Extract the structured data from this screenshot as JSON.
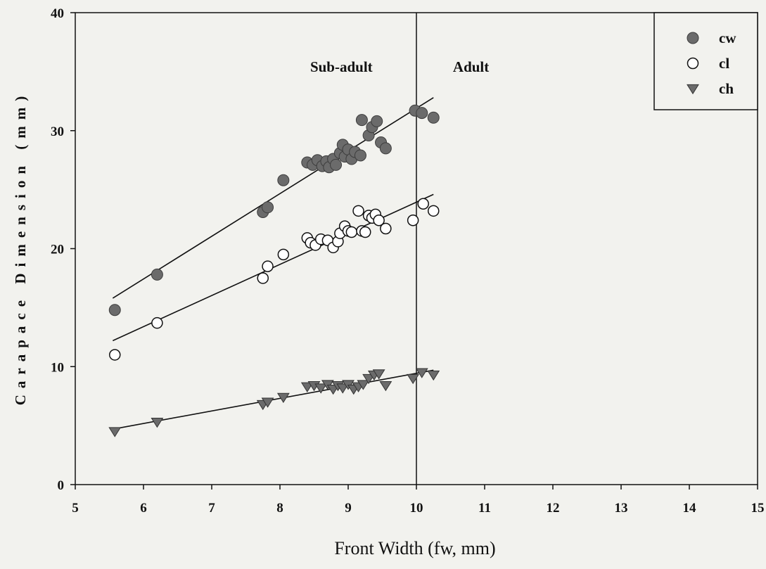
{
  "chart_data": {
    "type": "scatter",
    "title": "",
    "xlabel": "Front Width (fw, mm)",
    "ylabel": "Carapace Dimension (mm)",
    "xlim": [
      5,
      15
    ],
    "ylim": [
      0,
      40
    ],
    "xticks": [
      5,
      6,
      7,
      8,
      9,
      10,
      11,
      12,
      13,
      14,
      15
    ],
    "yticks": [
      0,
      10,
      20,
      30,
      40
    ],
    "grid": false,
    "legend_position": "top-right",
    "divider": {
      "x": 10
    },
    "annotations": [
      {
        "text": "Sub-adult",
        "x": 8.9,
        "y": 35
      },
      {
        "text": "Adult",
        "x": 10.8,
        "y": 35
      }
    ],
    "series": [
      {
        "name": "cw",
        "marker": "circle-filled",
        "color": "#6b6b6b",
        "points": [
          [
            5.58,
            14.8
          ],
          [
            6.2,
            17.8
          ],
          [
            7.75,
            23.1
          ],
          [
            7.82,
            23.5
          ],
          [
            8.05,
            25.8
          ],
          [
            8.4,
            27.3
          ],
          [
            8.48,
            27.1
          ],
          [
            8.55,
            27.5
          ],
          [
            8.62,
            27.0
          ],
          [
            8.68,
            27.4
          ],
          [
            8.72,
            26.9
          ],
          [
            8.78,
            27.6
          ],
          [
            8.82,
            27.1
          ],
          [
            8.88,
            28.1
          ],
          [
            8.92,
            28.8
          ],
          [
            8.95,
            27.8
          ],
          [
            9.0,
            28.4
          ],
          [
            9.05,
            27.6
          ],
          [
            9.1,
            28.2
          ],
          [
            9.18,
            27.9
          ],
          [
            9.2,
            30.9
          ],
          [
            9.3,
            29.6
          ],
          [
            9.35,
            30.3
          ],
          [
            9.42,
            30.8
          ],
          [
            9.48,
            29.0
          ],
          [
            9.55,
            28.5
          ],
          [
            9.98,
            31.7
          ],
          [
            10.08,
            31.5
          ],
          [
            10.25,
            31.1
          ]
        ],
        "fit": [
          [
            5.55,
            15.8
          ],
          [
            10.25,
            32.8
          ]
        ]
      },
      {
        "name": "cl",
        "marker": "circle-open",
        "color": "#ffffff",
        "points": [
          [
            5.58,
            11.0
          ],
          [
            6.2,
            13.7
          ],
          [
            7.75,
            17.5
          ],
          [
            7.82,
            18.5
          ],
          [
            8.05,
            19.5
          ],
          [
            8.4,
            20.9
          ],
          [
            8.45,
            20.5
          ],
          [
            8.52,
            20.3
          ],
          [
            8.6,
            20.8
          ],
          [
            8.7,
            20.7
          ],
          [
            8.78,
            20.1
          ],
          [
            8.85,
            20.6
          ],
          [
            8.88,
            21.3
          ],
          [
            8.95,
            21.9
          ],
          [
            9.0,
            21.5
          ],
          [
            9.05,
            21.4
          ],
          [
            9.15,
            23.2
          ],
          [
            9.2,
            21.5
          ],
          [
            9.25,
            21.4
          ],
          [
            9.3,
            22.8
          ],
          [
            9.35,
            22.6
          ],
          [
            9.4,
            22.9
          ],
          [
            9.45,
            22.4
          ],
          [
            9.55,
            21.7
          ],
          [
            9.95,
            22.4
          ],
          [
            10.1,
            23.8
          ],
          [
            10.25,
            23.2
          ]
        ],
        "fit": [
          [
            5.55,
            12.2
          ],
          [
            10.25,
            24.6
          ]
        ]
      },
      {
        "name": "ch",
        "marker": "triangle-down",
        "color": "#6b6b6b",
        "points": [
          [
            5.58,
            4.5
          ],
          [
            6.2,
            5.3
          ],
          [
            7.75,
            6.8
          ],
          [
            7.82,
            7.0
          ],
          [
            8.05,
            7.4
          ],
          [
            8.4,
            8.3
          ],
          [
            8.5,
            8.4
          ],
          [
            8.6,
            8.2
          ],
          [
            8.7,
            8.5
          ],
          [
            8.78,
            8.1
          ],
          [
            8.85,
            8.4
          ],
          [
            8.92,
            8.2
          ],
          [
            9.0,
            8.5
          ],
          [
            9.08,
            8.1
          ],
          [
            9.15,
            8.3
          ],
          [
            9.22,
            8.5
          ],
          [
            9.3,
            9.0
          ],
          [
            9.38,
            9.3
          ],
          [
            9.45,
            9.4
          ],
          [
            9.55,
            8.4
          ],
          [
            9.95,
            9.0
          ],
          [
            10.08,
            9.5
          ],
          [
            10.25,
            9.3
          ]
        ],
        "fit": [
          [
            5.55,
            4.7
          ],
          [
            10.25,
            9.7
          ]
        ]
      }
    ]
  }
}
